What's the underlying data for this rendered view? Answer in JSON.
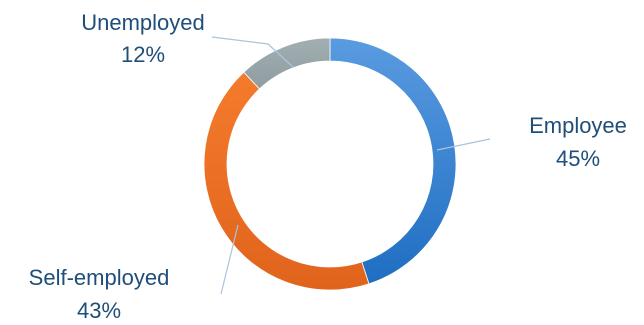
{
  "chart_data": {
    "type": "pie",
    "variant": "donut",
    "title": "",
    "categories": [
      "Employee",
      "Self-employed",
      "Unemployed"
    ],
    "values": [
      45,
      43,
      12
    ],
    "value_labels": [
      "45%",
      "43%",
      "12%"
    ],
    "colors": [
      "#4a8fd6",
      "#ef7a2a",
      "#9aa8ab"
    ],
    "start_angle_deg": 0,
    "direction": "clockwise",
    "legend": "none"
  }
}
